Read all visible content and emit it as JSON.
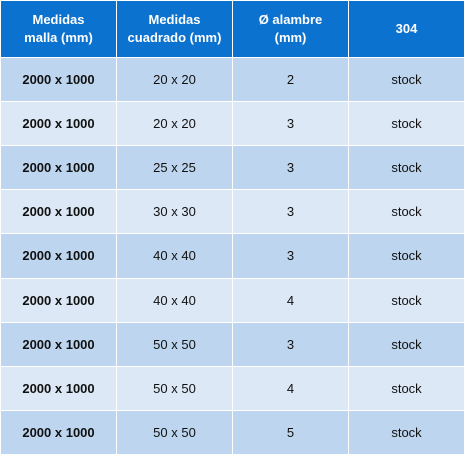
{
  "table": {
    "headers": [
      {
        "line1": "Medidas",
        "line2": "malla (mm)"
      },
      {
        "line1": "Medidas",
        "line2": "cuadrado (mm)"
      },
      {
        "line1": "Ø alambre",
        "line2": "(mm)"
      },
      {
        "line1": "304",
        "line2": ""
      }
    ],
    "rows": [
      [
        "2000 x 1000",
        "20 x 20",
        "2",
        "stock"
      ],
      [
        "2000 x 1000",
        "20 x 20",
        "3",
        "stock"
      ],
      [
        "2000 x 1000",
        "25 x 25",
        "3",
        "stock"
      ],
      [
        "2000 x 1000",
        "30 x 30",
        "3",
        "stock"
      ],
      [
        "2000 x 1000",
        "40 x 40",
        "3",
        "stock"
      ],
      [
        "2000 x 1000",
        "40 x 40",
        "4",
        "stock"
      ],
      [
        "2000 x 1000",
        "50 x 50",
        "3",
        "stock"
      ],
      [
        "2000 x 1000",
        "50 x 50",
        "4",
        "stock"
      ],
      [
        "2000 x 1000",
        "50 x 50",
        "5",
        "stock"
      ]
    ]
  },
  "colors": {
    "header_bg": "#0c72cf",
    "row_dark": "#bdd5ee",
    "row_light": "#dce8f6"
  }
}
